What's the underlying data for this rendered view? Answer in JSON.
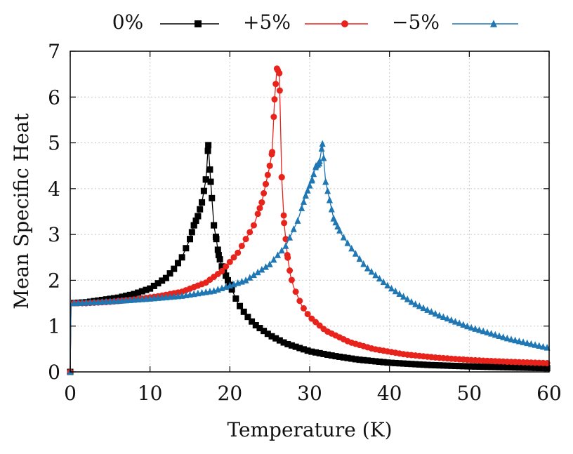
{
  "chart_data": {
    "type": "line",
    "title": "",
    "xlabel": "Temperature (K)",
    "ylabel": "Mean Specific Heat",
    "xlim": [
      0,
      60
    ],
    "ylim": [
      0,
      7
    ],
    "xticks": [
      0,
      10,
      20,
      30,
      40,
      50,
      60
    ],
    "yticks": [
      0,
      1,
      2,
      3,
      4,
      5,
      6,
      7
    ],
    "grid": true,
    "legend_position": "top",
    "series": [
      {
        "name": "0%",
        "color": "#000000",
        "marker": "square",
        "x": [
          0,
          0.1,
          2,
          4,
          6,
          8,
          10,
          12,
          13,
          14,
          15,
          15.5,
          16,
          16.5,
          17,
          17.3,
          17.6,
          18,
          18.3,
          18.6,
          19,
          19.5,
          20,
          21,
          22,
          23,
          25,
          27,
          30,
          33,
          36,
          40,
          45,
          50,
          55,
          60
        ],
        "y": [
          0,
          1.5,
          1.52,
          1.57,
          1.62,
          1.7,
          1.82,
          2.05,
          2.25,
          2.5,
          2.9,
          3.2,
          3.4,
          3.7,
          4.2,
          4.95,
          4.15,
          3.2,
          2.9,
          2.55,
          2.3,
          2.1,
          1.9,
          1.5,
          1.25,
          1.05,
          0.8,
          0.62,
          0.45,
          0.35,
          0.27,
          0.2,
          0.15,
          0.12,
          0.1,
          0.08
        ]
      },
      {
        "name": "+5%",
        "color": "#e8231c",
        "marker": "circle",
        "x": [
          0,
          0.1,
          2,
          5,
          8,
          11,
          14,
          17,
          19,
          21,
          22,
          23,
          24,
          24.5,
          25,
          25.3,
          25.6,
          25.9,
          26.2,
          26.5,
          26.8,
          27.2,
          27.6,
          28,
          29,
          30,
          32,
          35,
          38,
          42,
          46,
          50,
          55,
          60
        ],
        "y": [
          0,
          1.5,
          1.5,
          1.53,
          1.58,
          1.65,
          1.75,
          1.95,
          2.2,
          2.6,
          2.9,
          3.2,
          3.7,
          4.1,
          4.5,
          4.8,
          5.95,
          6.62,
          6.52,
          4.25,
          3.25,
          2.55,
          2.1,
          1.85,
          1.45,
          1.2,
          0.9,
          0.65,
          0.5,
          0.38,
          0.31,
          0.26,
          0.22,
          0.19
        ]
      },
      {
        "name": "−5%",
        "color": "#1f77b4",
        "marker": "triangle",
        "x": [
          0,
          0.1,
          3,
          6,
          10,
          14,
          18,
          22,
          25,
          27,
          28.5,
          29.5,
          30.3,
          30.8,
          31.2,
          31.6,
          32,
          32.5,
          33,
          34,
          35,
          37,
          40,
          43,
          46,
          50,
          55,
          60
        ],
        "y": [
          0,
          1.5,
          1.52,
          1.55,
          1.6,
          1.66,
          1.77,
          2.0,
          2.35,
          2.75,
          3.3,
          3.85,
          4.2,
          4.5,
          4.55,
          4.98,
          4.15,
          3.75,
          3.35,
          3.0,
          2.75,
          2.3,
          1.85,
          1.5,
          1.25,
          0.98,
          0.72,
          0.52
        ]
      }
    ]
  }
}
